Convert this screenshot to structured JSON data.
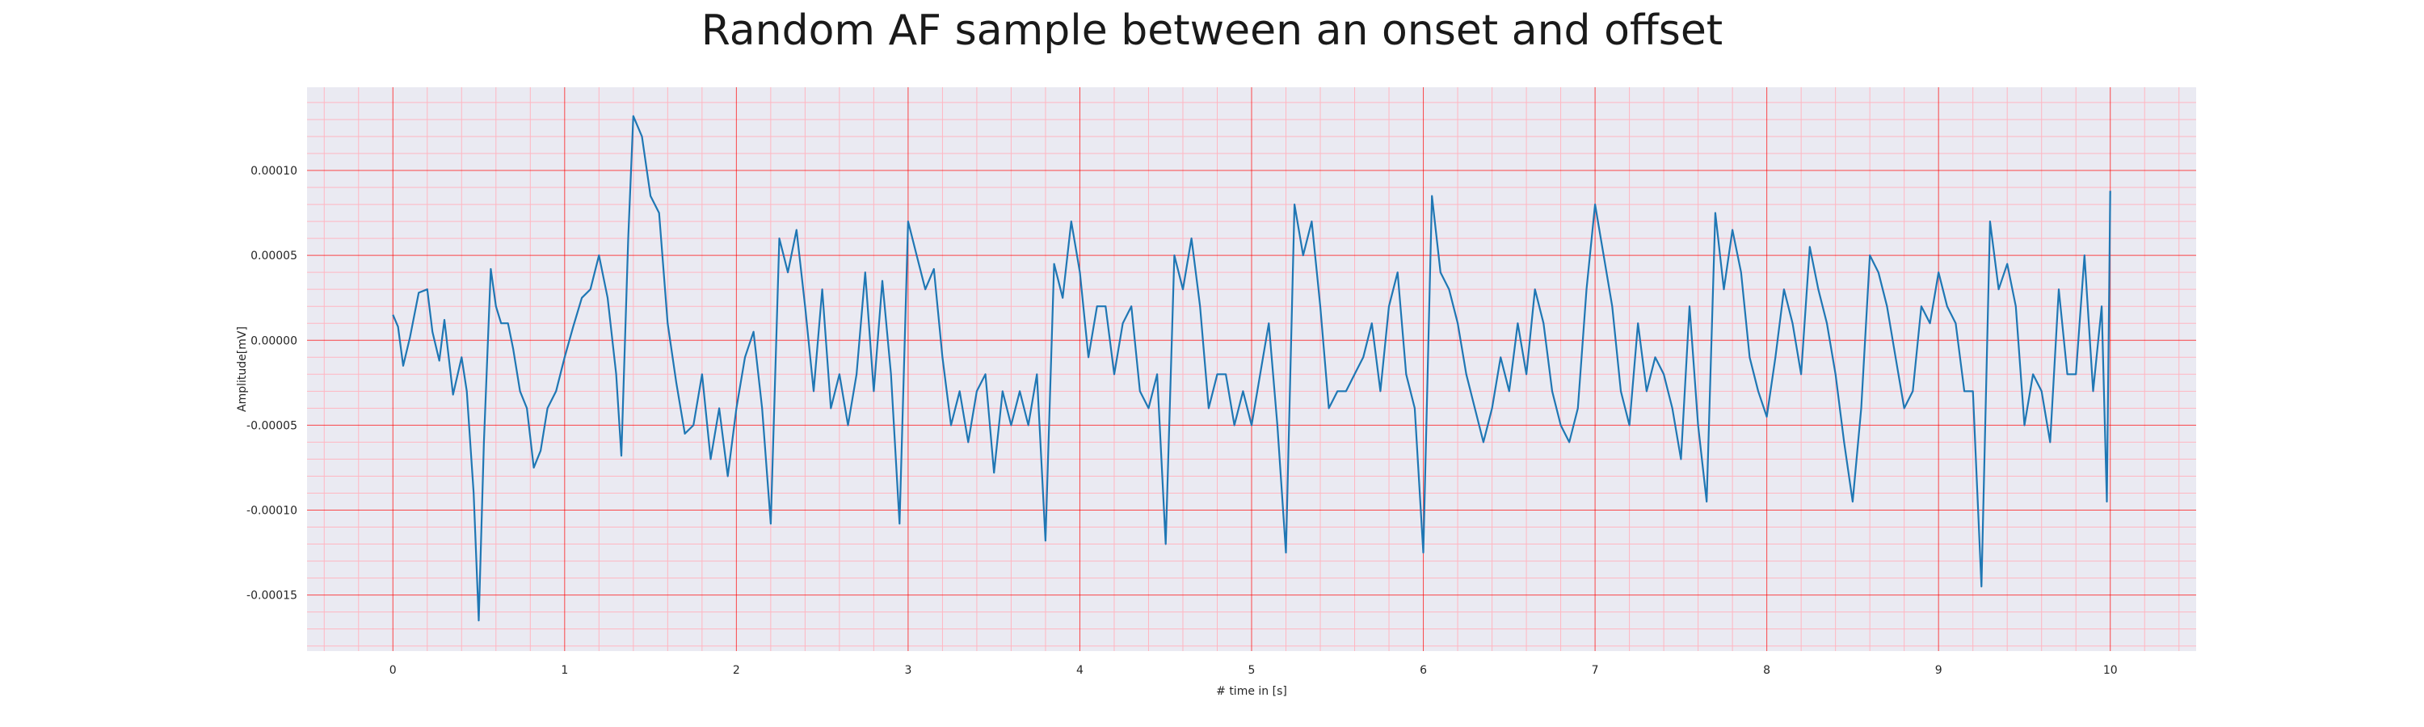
{
  "chart_data": {
    "type": "line",
    "title": "Random AF sample between an onset and offset",
    "xlabel": "# time in [s]",
    "ylabel": "Amplitude[mV]",
    "xlim": [
      -0.5,
      10.5
    ],
    "ylim": [
      -0.000183,
      0.000149
    ],
    "x_ticks": [
      0,
      1,
      2,
      3,
      4,
      5,
      6,
      7,
      8,
      9,
      10
    ],
    "x_tick_labels": [
      "0",
      "1",
      "2",
      "3",
      "4",
      "5",
      "6",
      "7",
      "8",
      "9",
      "10"
    ],
    "y_ticks": [
      -0.00015,
      -0.0001,
      -5e-05,
      0,
      5e-05,
      0.0001
    ],
    "y_tick_labels": [
      "-0.00015",
      "-0.00010",
      "-0.00005",
      "0.00000",
      "0.00005",
      "0.00010"
    ],
    "grid": true,
    "minor_grid": true,
    "colors": {
      "line": "#1f77b4",
      "plot_background": "#eaeaf2",
      "major_grid": "#ff0000",
      "minor_grid": "#ffb6c1"
    },
    "series": [
      {
        "x": [
          0.0,
          0.03,
          0.06,
          0.1,
          0.15,
          0.2,
          0.23,
          0.27,
          0.3,
          0.35,
          0.4,
          0.43,
          0.47,
          0.5,
          0.53,
          0.57,
          0.6,
          0.63,
          0.67,
          0.7,
          0.74,
          0.78,
          0.82,
          0.86,
          0.9,
          0.95,
          1.0,
          1.05,
          1.1,
          1.15,
          1.2,
          1.25,
          1.3,
          1.33,
          1.37,
          1.4,
          1.45,
          1.5,
          1.55,
          1.6,
          1.65,
          1.7,
          1.75,
          1.8,
          1.85,
          1.9,
          1.95,
          2.0,
          2.05,
          2.1,
          2.15,
          2.2,
          2.25,
          2.3,
          2.35,
          2.4,
          2.45,
          2.5,
          2.55,
          2.6,
          2.65,
          2.7,
          2.75,
          2.8,
          2.85,
          2.9,
          2.95,
          3.0,
          3.05,
          3.1,
          3.15,
          3.2,
          3.25,
          3.3,
          3.35,
          3.4,
          3.45,
          3.5,
          3.55,
          3.6,
          3.65,
          3.7,
          3.75,
          3.8,
          3.85,
          3.9,
          3.95,
          4.0,
          4.05,
          4.1,
          4.15,
          4.2,
          4.25,
          4.3,
          4.35,
          4.4,
          4.45,
          4.5,
          4.55,
          4.6,
          4.65,
          4.7,
          4.75,
          4.8,
          4.85,
          4.9,
          4.95,
          5.0,
          5.05,
          5.1,
          5.15,
          5.2,
          5.25,
          5.3,
          5.35,
          5.4,
          5.45,
          5.5,
          5.55,
          5.6,
          5.65,
          5.7,
          5.75,
          5.8,
          5.85,
          5.9,
          5.95,
          6.0,
          6.05,
          6.1,
          6.15,
          6.2,
          6.25,
          6.3,
          6.35,
          6.4,
          6.45,
          6.5,
          6.55,
          6.6,
          6.65,
          6.7,
          6.75,
          6.8,
          6.85,
          6.9,
          6.95,
          7.0,
          7.05,
          7.1,
          7.15,
          7.2,
          7.25,
          7.3,
          7.35,
          7.4,
          7.45,
          7.5,
          7.55,
          7.6,
          7.65,
          7.7,
          7.75,
          7.8,
          7.85,
          7.9,
          7.95,
          8.0,
          8.05,
          8.1,
          8.15,
          8.2,
          8.25,
          8.3,
          8.35,
          8.4,
          8.45,
          8.5,
          8.55,
          8.6,
          8.65,
          8.7,
          8.75,
          8.8,
          8.85,
          8.9,
          8.95,
          9.0,
          9.05,
          9.1,
          9.15,
          9.2,
          9.25,
          9.3,
          9.35,
          9.4,
          9.45,
          9.5,
          9.55,
          9.6,
          9.65,
          9.7,
          9.75,
          9.8,
          9.85,
          9.9,
          9.95,
          9.98,
          10.0
        ],
        "y": [
          1.5e-05,
          8e-06,
          -1.5e-05,
          2e-06,
          2.8e-05,
          3e-05,
          5e-06,
          -1.2e-05,
          1.2e-05,
          -3.2e-05,
          -1e-05,
          -3e-05,
          -9e-05,
          -0.000165,
          -6e-05,
          4.2e-05,
          2e-05,
          1e-05,
          1e-05,
          -5e-06,
          -3e-05,
          -4e-05,
          -7.5e-05,
          -6.5e-05,
          -4e-05,
          -3e-05,
          -1e-05,
          8e-06,
          2.5e-05,
          3e-05,
          5e-05,
          2.5e-05,
          -2e-05,
          -6.8e-05,
          6e-05,
          0.000132,
          0.00012,
          8.5e-05,
          7.5e-05,
          1e-05,
          -2.5e-05,
          -5.5e-05,
          -5e-05,
          -2e-05,
          -7e-05,
          -4e-05,
          -8e-05,
          -4e-05,
          -1e-05,
          5e-06,
          -4e-05,
          -0.000108,
          6e-05,
          4e-05,
          6.5e-05,
          2e-05,
          -3e-05,
          3e-05,
          -4e-05,
          -2e-05,
          -5e-05,
          -2e-05,
          4e-05,
          -3e-05,
          3.5e-05,
          -2e-05,
          -0.000108,
          7e-05,
          5e-05,
          3e-05,
          4.2e-05,
          -1e-05,
          -5e-05,
          -3e-05,
          -6e-05,
          -3e-05,
          -2e-05,
          -7.8e-05,
          -3e-05,
          -5e-05,
          -3e-05,
          -5e-05,
          -2e-05,
          -0.000118,
          4.5e-05,
          2.5e-05,
          7e-05,
          4e-05,
          -1e-05,
          2e-05,
          2e-05,
          -2e-05,
          1e-05,
          2e-05,
          -3e-05,
          -4e-05,
          -2e-05,
          -0.00012,
          5e-05,
          3e-05,
          6e-05,
          2e-05,
          -4e-05,
          -2e-05,
          -2e-05,
          -5e-05,
          -3e-05,
          -5e-05,
          -2e-05,
          1e-05,
          -5e-05,
          -0.000125,
          8e-05,
          5e-05,
          7e-05,
          2e-05,
          -4e-05,
          -3e-05,
          -3e-05,
          -2e-05,
          -1e-05,
          1e-05,
          -3e-05,
          2e-05,
          4e-05,
          -2e-05,
          -4e-05,
          -0.000125,
          8.5e-05,
          4e-05,
          3e-05,
          1e-05,
          -2e-05,
          -4e-05,
          -6e-05,
          -4e-05,
          -1e-05,
          -3e-05,
          1e-05,
          -2e-05,
          3e-05,
          1e-05,
          -3e-05,
          -5e-05,
          -6e-05,
          -4e-05,
          3e-05,
          8e-05,
          5e-05,
          2e-05,
          -3e-05,
          -5e-05,
          1e-05,
          -3e-05,
          -1e-05,
          -2e-05,
          -4e-05,
          -7e-05,
          2e-05,
          -5e-05,
          -9.5e-05,
          7.5e-05,
          3e-05,
          6.5e-05,
          4e-05,
          -1e-05,
          -3e-05,
          -4.5e-05,
          -1e-05,
          3e-05,
          1e-05,
          -2e-05,
          5.5e-05,
          3e-05,
          1e-05,
          -2e-05,
          -6e-05,
          -9.5e-05,
          -4e-05,
          5e-05,
          4e-05,
          2e-05,
          -1e-05,
          -4e-05,
          -3e-05,
          2e-05,
          1e-05,
          4e-05,
          2e-05,
          1e-05,
          -3e-05,
          -3e-05,
          -0.000145,
          7e-05,
          3e-05,
          4.5e-05,
          2e-05,
          -5e-05,
          -2e-05,
          -3e-05,
          -6e-05,
          3e-05,
          -2e-05,
          -2e-05,
          5e-05,
          -3e-05,
          2e-05,
          -9.5e-05,
          8.8e-05
        ]
      }
    ]
  }
}
